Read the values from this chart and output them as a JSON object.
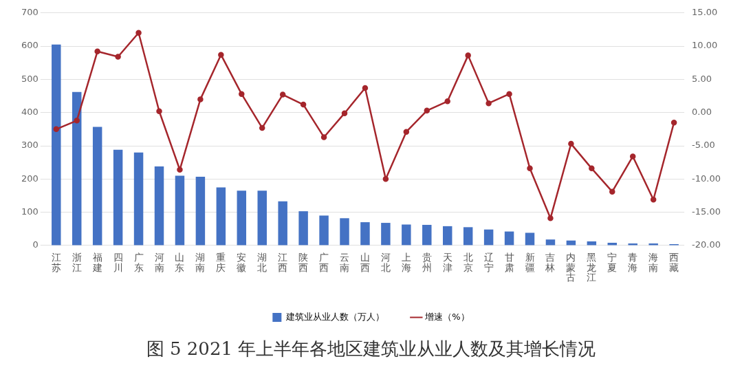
{
  "chart_data": {
    "type": "bar",
    "title": "图 5 2021 年上半年各地区建筑业从业人数及其增长情况",
    "categories": [
      "江苏",
      "浙江",
      "福建",
      "四川",
      "广东",
      "河南",
      "山东",
      "湖南",
      "重庆",
      "安徽",
      "湖北",
      "江西",
      "陕西",
      "广西",
      "云南",
      "山西",
      "河北",
      "上海",
      "贵州",
      "天津",
      "北京",
      "辽宁",
      "甘肃",
      "新疆",
      "吉林",
      "内蒙古",
      "黑龙江",
      "宁夏",
      "青海",
      "海南",
      "西藏"
    ],
    "series": [
      {
        "name": "建筑业从业人数（万人）",
        "color": "#4472c4",
        "values": [
          605,
          462,
          357,
          288,
          280,
          238,
          210,
          207,
          175,
          165,
          165,
          133,
          103,
          90,
          82,
          70,
          68,
          63,
          62,
          58,
          55,
          48,
          42,
          38,
          18,
          15,
          12,
          8,
          6,
          6,
          4
        ]
      },
      {
        "name": "增速（%）",
        "type": "line",
        "axis": "y2",
        "color": "#a5262c",
        "marker": "circle",
        "values": [
          -2.5,
          -1.2,
          9.2,
          8.4,
          12.0,
          0.2,
          -8.6,
          2.0,
          8.7,
          2.8,
          -2.3,
          2.7,
          1.2,
          -3.7,
          -0.1,
          3.7,
          -10.0,
          -2.9,
          0.3,
          1.7,
          8.6,
          1.4,
          2.8,
          -8.4,
          -15.9,
          -4.7,
          -8.4,
          -11.9,
          -6.6,
          -13.1,
          -1.5
        ]
      }
    ],
    "ylim": [
      0,
      700
    ],
    "yticks": [
      0,
      100,
      200,
      300,
      400,
      500,
      600,
      700
    ],
    "y2lim": [
      -20,
      15
    ],
    "y2ticks": [
      {
        "value": -20,
        "label": "-20.00"
      },
      {
        "value": -15,
        "label": "-15.00"
      },
      {
        "value": -10,
        "label": "-10.00"
      },
      {
        "value": -5,
        "label": "-5.00"
      },
      {
        "value": 0,
        "label": "0.00"
      },
      {
        "value": 5,
        "label": "5.00"
      },
      {
        "value": 10,
        "label": "10.00"
      },
      {
        "value": 15,
        "label": "15.00"
      }
    ],
    "grid": "y",
    "legend": "bottom"
  }
}
